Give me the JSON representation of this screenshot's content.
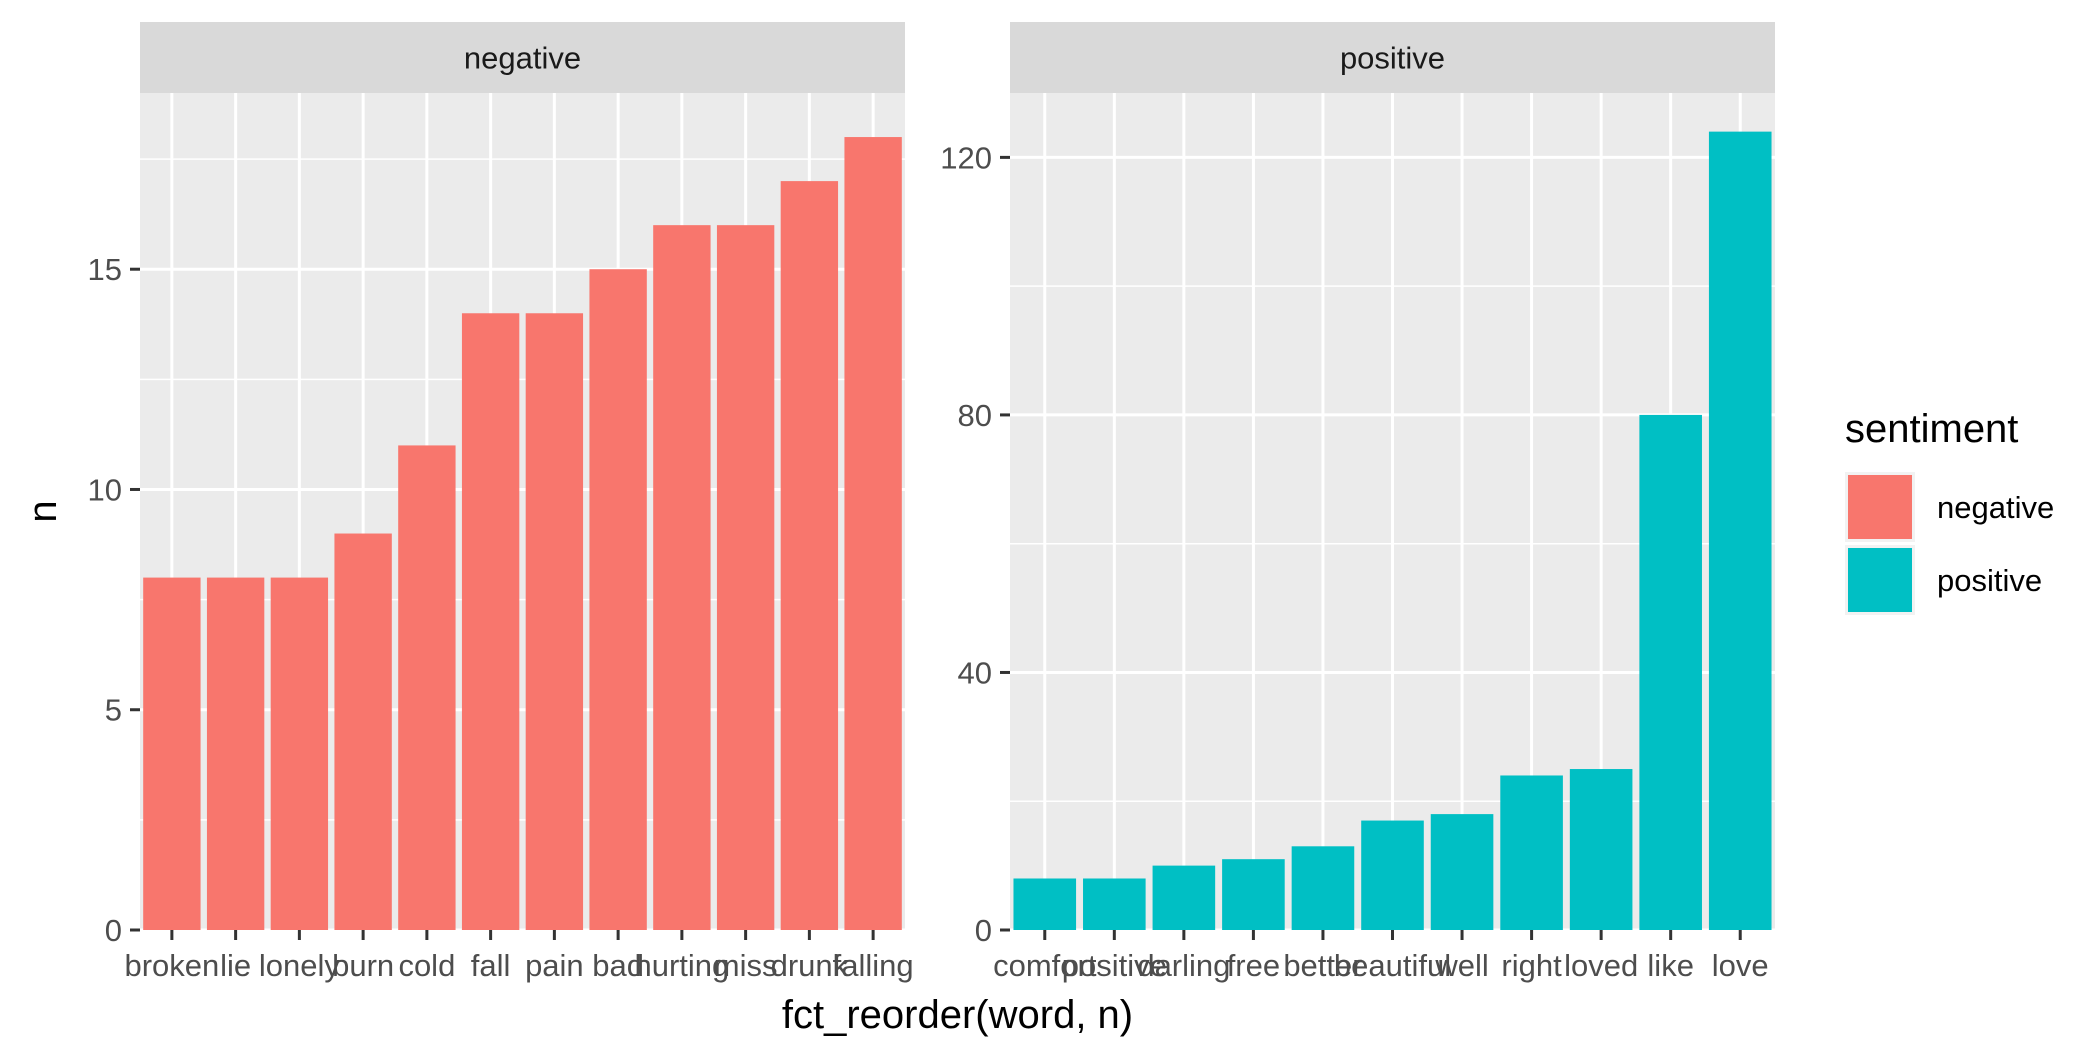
{
  "chart_data": {
    "type": "bar",
    "x_axis_title": "fct_reorder(word, n)",
    "y_axis_title": "n",
    "legend": {
      "title": "sentiment",
      "position": "right",
      "entries": [
        {
          "label": "negative",
          "color": "#F8766D"
        },
        {
          "label": "positive",
          "color": "#00BFC4"
        }
      ]
    },
    "panels": [
      {
        "strip_label": "negative",
        "color": "#F8766D",
        "ylim": [
          0,
          19
        ],
        "y_ticks": [
          0,
          5,
          10,
          15
        ],
        "categories": [
          "broken",
          "lie",
          "lonely",
          "burn",
          "cold",
          "fall",
          "pain",
          "bad",
          "hurting",
          "miss",
          "drunk",
          "falling"
        ],
        "values": [
          8,
          8,
          8,
          9,
          11,
          14,
          14,
          15,
          16,
          16,
          17,
          18
        ]
      },
      {
        "strip_label": "positive",
        "color": "#00BFC4",
        "ylim": [
          0,
          130
        ],
        "y_ticks": [
          0,
          40,
          80,
          120
        ],
        "categories": [
          "comfort",
          "positive",
          "darling",
          "free",
          "better",
          "beautiful",
          "well",
          "right",
          "loved",
          "like",
          "love"
        ],
        "values": [
          8,
          8,
          10,
          11,
          13,
          17,
          18,
          24,
          25,
          80,
          124
        ]
      }
    ],
    "grid": true,
    "background": "#EBEBEB",
    "strip_background": "#D9D9D9"
  }
}
